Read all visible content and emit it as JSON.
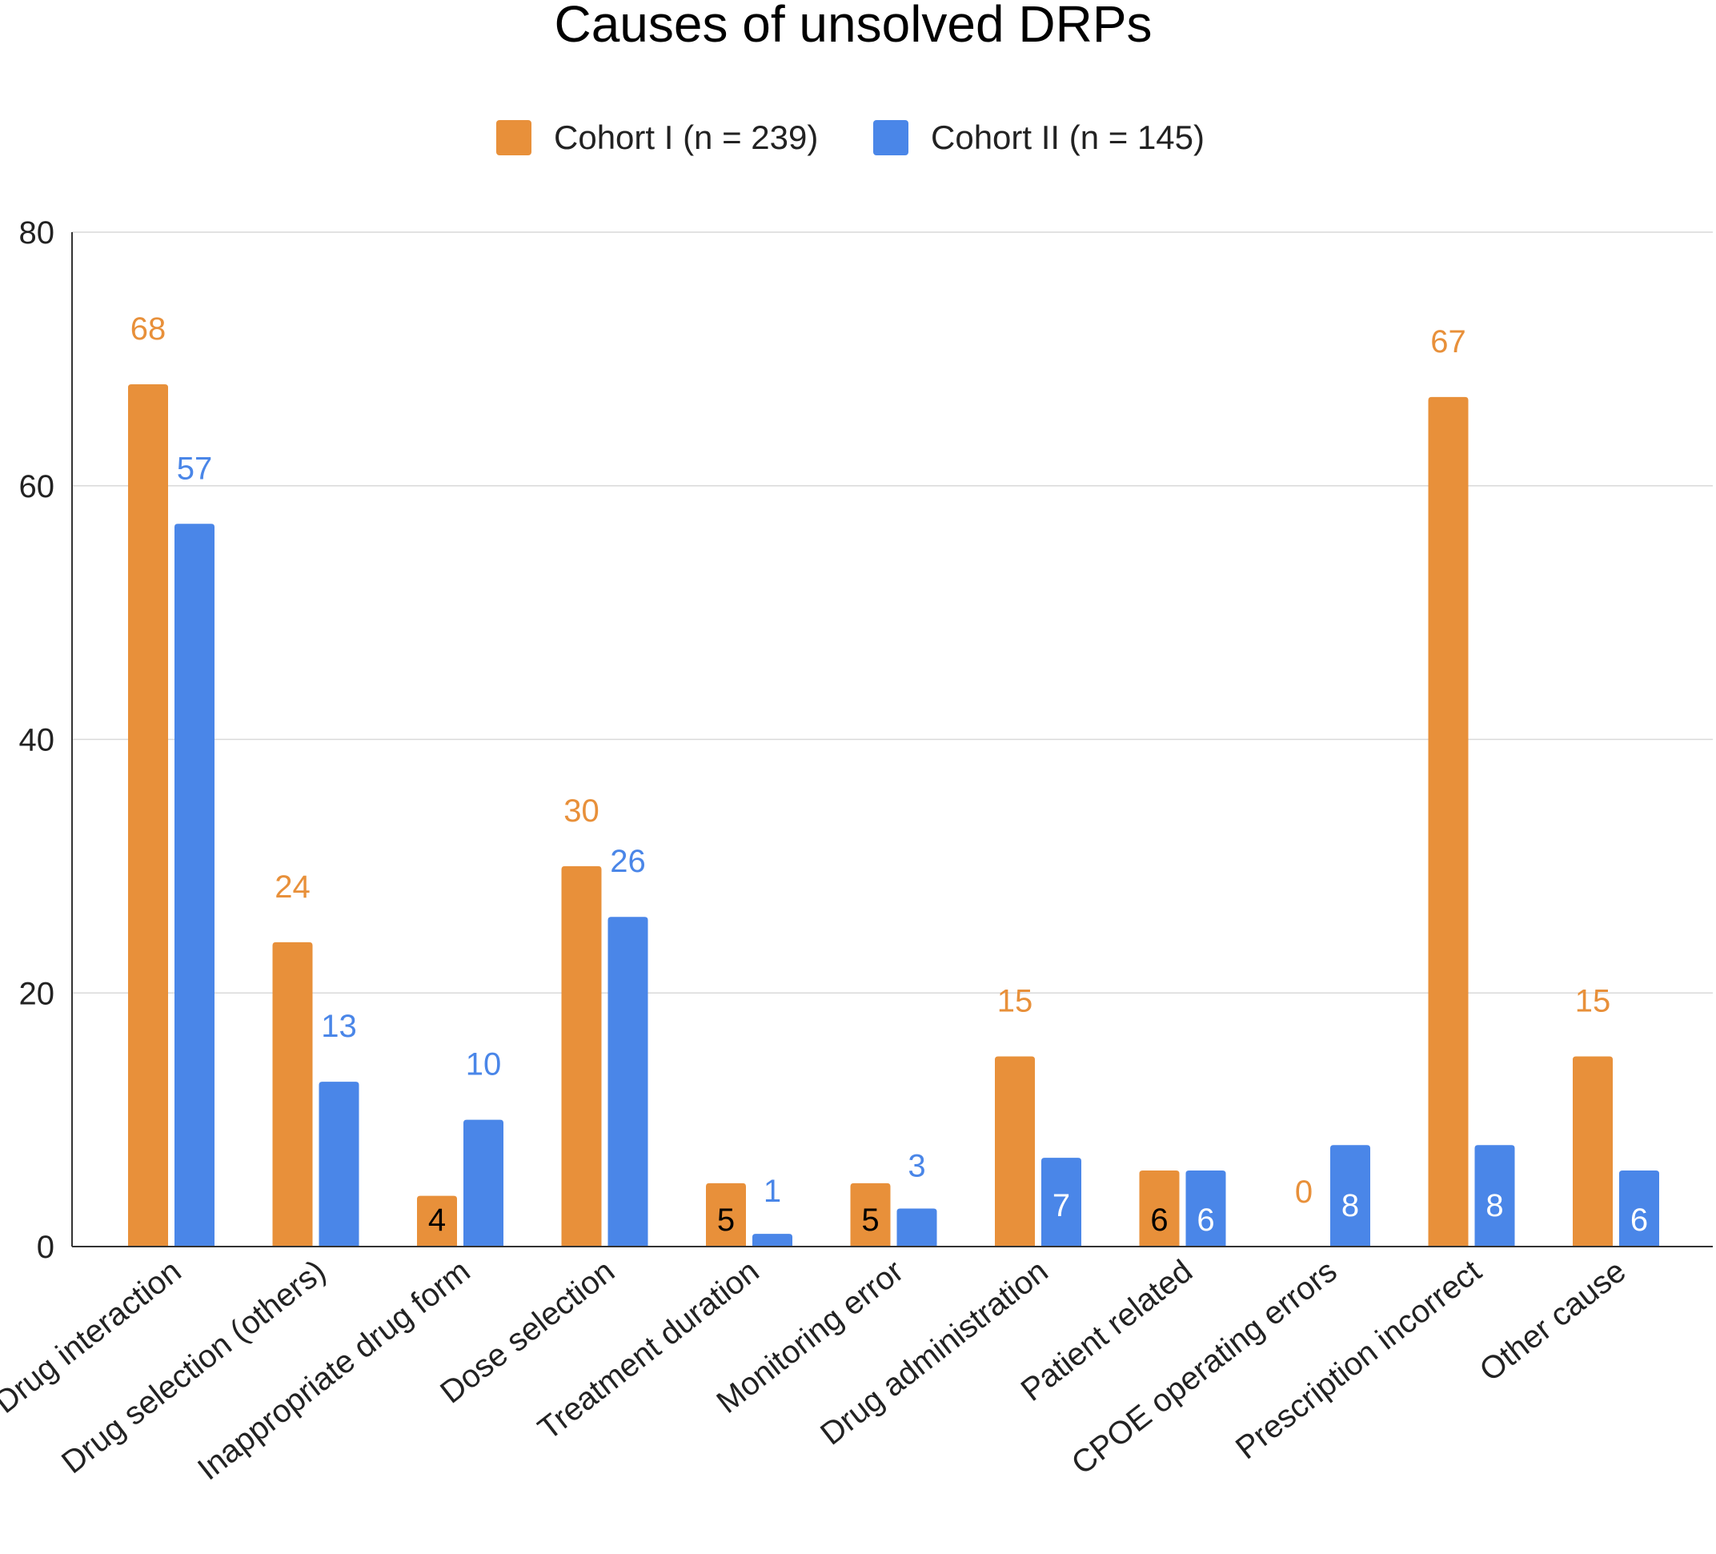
{
  "chart_data": {
    "type": "bar",
    "title": "Causes of unsolved DRPs",
    "xlabel": "",
    "ylabel": "",
    "ylim": [
      0,
      80
    ],
    "yticks": [
      0,
      20,
      40,
      60,
      80
    ],
    "grid": true,
    "legend_position": "top-center",
    "categories": [
      "Drug interaction",
      "Drug selection (others)",
      "Inappropriate drug form",
      "Dose selection",
      "Treatment duration",
      "Monitoring error",
      "Drug administration",
      "Patient related",
      "CPOE operating errors",
      "Prescription incorrect",
      "Other cause"
    ],
    "series": [
      {
        "name": "Cohort I (n = 239)",
        "color": "#E8903A",
        "values": [
          68,
          24,
          4,
          30,
          5,
          5,
          15,
          6,
          0,
          67,
          15
        ]
      },
      {
        "name": "Cohort II (n = 145)",
        "color": "#4A86E8",
        "values": [
          57,
          13,
          10,
          26,
          1,
          3,
          7,
          6,
          8,
          8,
          6
        ]
      }
    ]
  }
}
